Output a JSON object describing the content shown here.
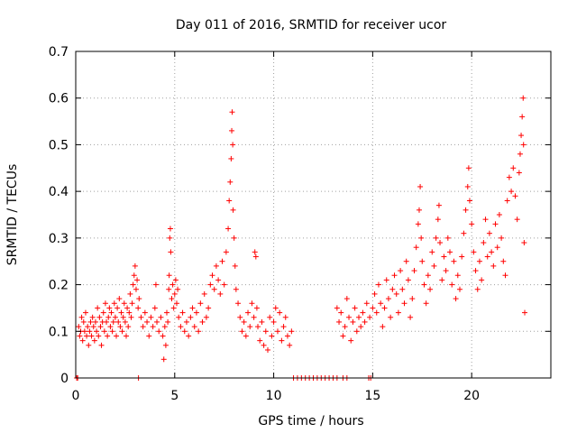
{
  "chart_data": {
    "type": "scatter",
    "title": "Day 011 of 2016, SRMTID for receiver ucor",
    "xlabel": "GPS time / hours",
    "ylabel": "SRMTID / TECUs",
    "xlim": [
      0,
      24
    ],
    "ylim": [
      0,
      0.7
    ],
    "xticks": [
      0,
      5,
      10,
      15,
      20
    ],
    "yticks": [
      0,
      0.1,
      0.2,
      0.3,
      0.4,
      0.5,
      0.6,
      0.7
    ],
    "xtick_labels": [
      "0",
      "5",
      "10",
      "15",
      "20"
    ],
    "ytick_labels": [
      "0",
      "0.1",
      "0.2",
      "0.3",
      "0.4",
      "0.5",
      "0.6",
      "0.7"
    ],
    "grid": true,
    "marker": "+",
    "color": "#ff0000",
    "series": [
      {
        "name": "SRMTID",
        "points": [
          [
            0.05,
            0.0
          ],
          [
            0.1,
            0.0
          ],
          [
            0.15,
            0.11
          ],
          [
            0.2,
            0.09
          ],
          [
            0.25,
            0.1
          ],
          [
            0.3,
            0.13
          ],
          [
            0.35,
            0.08
          ],
          [
            0.4,
            0.12
          ],
          [
            0.45,
            0.1
          ],
          [
            0.5,
            0.14
          ],
          [
            0.55,
            0.09
          ],
          [
            0.6,
            0.11
          ],
          [
            0.65,
            0.07
          ],
          [
            0.7,
            0.1
          ],
          [
            0.75,
            0.12
          ],
          [
            0.8,
            0.09
          ],
          [
            0.85,
            0.13
          ],
          [
            0.9,
            0.11
          ],
          [
            0.95,
            0.08
          ],
          [
            1.0,
            0.12
          ],
          [
            1.05,
            0.1
          ],
          [
            1.1,
            0.15
          ],
          [
            1.15,
            0.09
          ],
          [
            1.2,
            0.13
          ],
          [
            1.25,
            0.11
          ],
          [
            1.3,
            0.07
          ],
          [
            1.35,
            0.12
          ],
          [
            1.4,
            0.14
          ],
          [
            1.45,
            0.1
          ],
          [
            1.5,
            0.16
          ],
          [
            1.55,
            0.12
          ],
          [
            1.6,
            0.09
          ],
          [
            1.65,
            0.13
          ],
          [
            1.7,
            0.15
          ],
          [
            1.75,
            0.11
          ],
          [
            1.8,
            0.14
          ],
          [
            1.85,
            0.1
          ],
          [
            1.9,
            0.12
          ],
          [
            1.95,
            0.16
          ],
          [
            2.0,
            0.13
          ],
          [
            2.05,
            0.09
          ],
          [
            2.1,
            0.15
          ],
          [
            2.15,
            0.12
          ],
          [
            2.2,
            0.17
          ],
          [
            2.25,
            0.11
          ],
          [
            2.3,
            0.14
          ],
          [
            2.35,
            0.1
          ],
          [
            2.4,
            0.13
          ],
          [
            2.45,
            0.16
          ],
          [
            2.5,
            0.12
          ],
          [
            2.55,
            0.09
          ],
          [
            2.6,
            0.15
          ],
          [
            2.65,
            0.11
          ],
          [
            2.7,
            0.14
          ],
          [
            2.75,
            0.18
          ],
          [
            2.8,
            0.13
          ],
          [
            2.85,
            0.16
          ],
          [
            2.9,
            0.2
          ],
          [
            2.95,
            0.22
          ],
          [
            3.0,
            0.24
          ],
          [
            3.05,
            0.19
          ],
          [
            3.1,
            0.21
          ],
          [
            3.15,
            0.15
          ],
          [
            3.17,
            0.0
          ],
          [
            3.2,
            0.17
          ],
          [
            3.3,
            0.13
          ],
          [
            3.4,
            0.11
          ],
          [
            3.5,
            0.14
          ],
          [
            3.6,
            0.12
          ],
          [
            3.7,
            0.09
          ],
          [
            3.8,
            0.13
          ],
          [
            3.9,
            0.11
          ],
          [
            4.0,
            0.15
          ],
          [
            4.05,
            0.2
          ],
          [
            4.1,
            0.12
          ],
          [
            4.2,
            0.1
          ],
          [
            4.3,
            0.13
          ],
          [
            4.4,
            0.09
          ],
          [
            4.45,
            0.04
          ],
          [
            4.5,
            0.11
          ],
          [
            4.55,
            0.07
          ],
          [
            4.6,
            0.14
          ],
          [
            4.65,
            0.12
          ],
          [
            4.7,
            0.19
          ],
          [
            4.72,
            0.22
          ],
          [
            4.75,
            0.3
          ],
          [
            4.78,
            0.32
          ],
          [
            4.8,
            0.27
          ],
          [
            4.85,
            0.17
          ],
          [
            4.9,
            0.2
          ],
          [
            4.95,
            0.15
          ],
          [
            5.0,
            0.18
          ],
          [
            5.05,
            0.21
          ],
          [
            5.1,
            0.16
          ],
          [
            5.15,
            0.19
          ],
          [
            5.2,
            0.13
          ],
          [
            5.3,
            0.11
          ],
          [
            5.4,
            0.14
          ],
          [
            5.5,
            0.1
          ],
          [
            5.6,
            0.12
          ],
          [
            5.7,
            0.09
          ],
          [
            5.8,
            0.13
          ],
          [
            5.9,
            0.15
          ],
          [
            6.0,
            0.11
          ],
          [
            6.1,
            0.14
          ],
          [
            6.2,
            0.1
          ],
          [
            6.3,
            0.16
          ],
          [
            6.4,
            0.12
          ],
          [
            6.5,
            0.18
          ],
          [
            6.6,
            0.13
          ],
          [
            6.7,
            0.15
          ],
          [
            6.8,
            0.2
          ],
          [
            6.9,
            0.22
          ],
          [
            7.0,
            0.19
          ],
          [
            7.1,
            0.24
          ],
          [
            7.2,
            0.21
          ],
          [
            7.3,
            0.18
          ],
          [
            7.4,
            0.25
          ],
          [
            7.5,
            0.2
          ],
          [
            7.6,
            0.27
          ],
          [
            7.7,
            0.32
          ],
          [
            7.75,
            0.38
          ],
          [
            7.8,
            0.42
          ],
          [
            7.85,
            0.47
          ],
          [
            7.88,
            0.53
          ],
          [
            7.9,
            0.57
          ],
          [
            7.93,
            0.5
          ],
          [
            7.95,
            0.36
          ],
          [
            8.0,
            0.3
          ],
          [
            8.05,
            0.24
          ],
          [
            8.1,
            0.19
          ],
          [
            8.2,
            0.16
          ],
          [
            8.3,
            0.13
          ],
          [
            8.4,
            0.1
          ],
          [
            8.5,
            0.12
          ],
          [
            8.6,
            0.09
          ],
          [
            8.7,
            0.14
          ],
          [
            8.8,
            0.11
          ],
          [
            8.9,
            0.16
          ],
          [
            9.0,
            0.13
          ],
          [
            9.05,
            0.27
          ],
          [
            9.1,
            0.26
          ],
          [
            9.15,
            0.15
          ],
          [
            9.2,
            0.11
          ],
          [
            9.3,
            0.08
          ],
          [
            9.4,
            0.12
          ],
          [
            9.5,
            0.07
          ],
          [
            9.6,
            0.1
          ],
          [
            9.7,
            0.06
          ],
          [
            9.8,
            0.13
          ],
          [
            9.9,
            0.09
          ],
          [
            10.0,
            0.12
          ],
          [
            10.1,
            0.15
          ],
          [
            10.2,
            0.1
          ],
          [
            10.3,
            0.14
          ],
          [
            10.4,
            0.08
          ],
          [
            10.5,
            0.11
          ],
          [
            10.6,
            0.13
          ],
          [
            10.7,
            0.09
          ],
          [
            10.8,
            0.07
          ],
          [
            10.9,
            0.1
          ],
          [
            11.0,
            0.0
          ],
          [
            11.2,
            0.0
          ],
          [
            11.4,
            0.0
          ],
          [
            11.6,
            0.0
          ],
          [
            11.8,
            0.0
          ],
          [
            12.0,
            0.0
          ],
          [
            12.2,
            0.0
          ],
          [
            12.4,
            0.0
          ],
          [
            12.6,
            0.0
          ],
          [
            12.8,
            0.0
          ],
          [
            13.0,
            0.0
          ],
          [
            13.2,
            0.0
          ],
          [
            13.5,
            0.0
          ],
          [
            13.7,
            0.0
          ],
          [
            13.2,
            0.15
          ],
          [
            13.3,
            0.12
          ],
          [
            13.4,
            0.14
          ],
          [
            13.5,
            0.09
          ],
          [
            13.6,
            0.11
          ],
          [
            13.7,
            0.17
          ],
          [
            13.8,
            0.13
          ],
          [
            13.9,
            0.08
          ],
          [
            14.0,
            0.12
          ],
          [
            14.1,
            0.15
          ],
          [
            14.2,
            0.1
          ],
          [
            14.3,
            0.13
          ],
          [
            14.4,
            0.11
          ],
          [
            14.5,
            0.14
          ],
          [
            14.6,
            0.12
          ],
          [
            14.7,
            0.16
          ],
          [
            14.8,
            0.0
          ],
          [
            14.85,
            0.13
          ],
          [
            14.9,
            0.0
          ],
          [
            15.0,
            0.15
          ],
          [
            15.1,
            0.18
          ],
          [
            15.2,
            0.14
          ],
          [
            15.3,
            0.2
          ],
          [
            15.4,
            0.16
          ],
          [
            15.5,
            0.11
          ],
          [
            15.6,
            0.15
          ],
          [
            15.7,
            0.21
          ],
          [
            15.8,
            0.17
          ],
          [
            15.9,
            0.13
          ],
          [
            16.0,
            0.19
          ],
          [
            16.1,
            0.22
          ],
          [
            16.2,
            0.18
          ],
          [
            16.3,
            0.14
          ],
          [
            16.4,
            0.23
          ],
          [
            16.5,
            0.19
          ],
          [
            16.6,
            0.16
          ],
          [
            16.7,
            0.25
          ],
          [
            16.8,
            0.21
          ],
          [
            16.9,
            0.13
          ],
          [
            17.0,
            0.17
          ],
          [
            17.1,
            0.23
          ],
          [
            17.2,
            0.28
          ],
          [
            17.3,
            0.33
          ],
          [
            17.35,
            0.36
          ],
          [
            17.4,
            0.41
          ],
          [
            17.45,
            0.3
          ],
          [
            17.5,
            0.25
          ],
          [
            17.6,
            0.2
          ],
          [
            17.7,
            0.16
          ],
          [
            17.8,
            0.22
          ],
          [
            17.9,
            0.19
          ],
          [
            18.0,
            0.27
          ],
          [
            18.1,
            0.24
          ],
          [
            18.2,
            0.3
          ],
          [
            18.3,
            0.34
          ],
          [
            18.35,
            0.37
          ],
          [
            18.4,
            0.29
          ],
          [
            18.5,
            0.21
          ],
          [
            18.6,
            0.26
          ],
          [
            18.7,
            0.23
          ],
          [
            18.8,
            0.3
          ],
          [
            18.9,
            0.27
          ],
          [
            19.0,
            0.2
          ],
          [
            19.1,
            0.25
          ],
          [
            19.2,
            0.17
          ],
          [
            19.3,
            0.22
          ],
          [
            19.4,
            0.19
          ],
          [
            19.5,
            0.26
          ],
          [
            19.6,
            0.31
          ],
          [
            19.7,
            0.36
          ],
          [
            19.8,
            0.41
          ],
          [
            19.85,
            0.45
          ],
          [
            19.9,
            0.38
          ],
          [
            20.0,
            0.33
          ],
          [
            20.1,
            0.27
          ],
          [
            20.2,
            0.23
          ],
          [
            20.3,
            0.19
          ],
          [
            20.4,
            0.25
          ],
          [
            20.5,
            0.21
          ],
          [
            20.6,
            0.29
          ],
          [
            20.7,
            0.34
          ],
          [
            20.8,
            0.26
          ],
          [
            20.9,
            0.31
          ],
          [
            21.0,
            0.27
          ],
          [
            21.1,
            0.24
          ],
          [
            21.2,
            0.33
          ],
          [
            21.3,
            0.28
          ],
          [
            21.4,
            0.35
          ],
          [
            21.5,
            0.3
          ],
          [
            21.6,
            0.25
          ],
          [
            21.7,
            0.22
          ],
          [
            21.8,
            0.38
          ],
          [
            21.9,
            0.43
          ],
          [
            22.0,
            0.4
          ],
          [
            22.1,
            0.45
          ],
          [
            22.2,
            0.39
          ],
          [
            22.3,
            0.34
          ],
          [
            22.4,
            0.44
          ],
          [
            22.45,
            0.48
          ],
          [
            22.5,
            0.52
          ],
          [
            22.55,
            0.56
          ],
          [
            22.6,
            0.6
          ],
          [
            22.62,
            0.5
          ],
          [
            22.65,
            0.29
          ],
          [
            22.68,
            0.14
          ]
        ]
      }
    ]
  }
}
